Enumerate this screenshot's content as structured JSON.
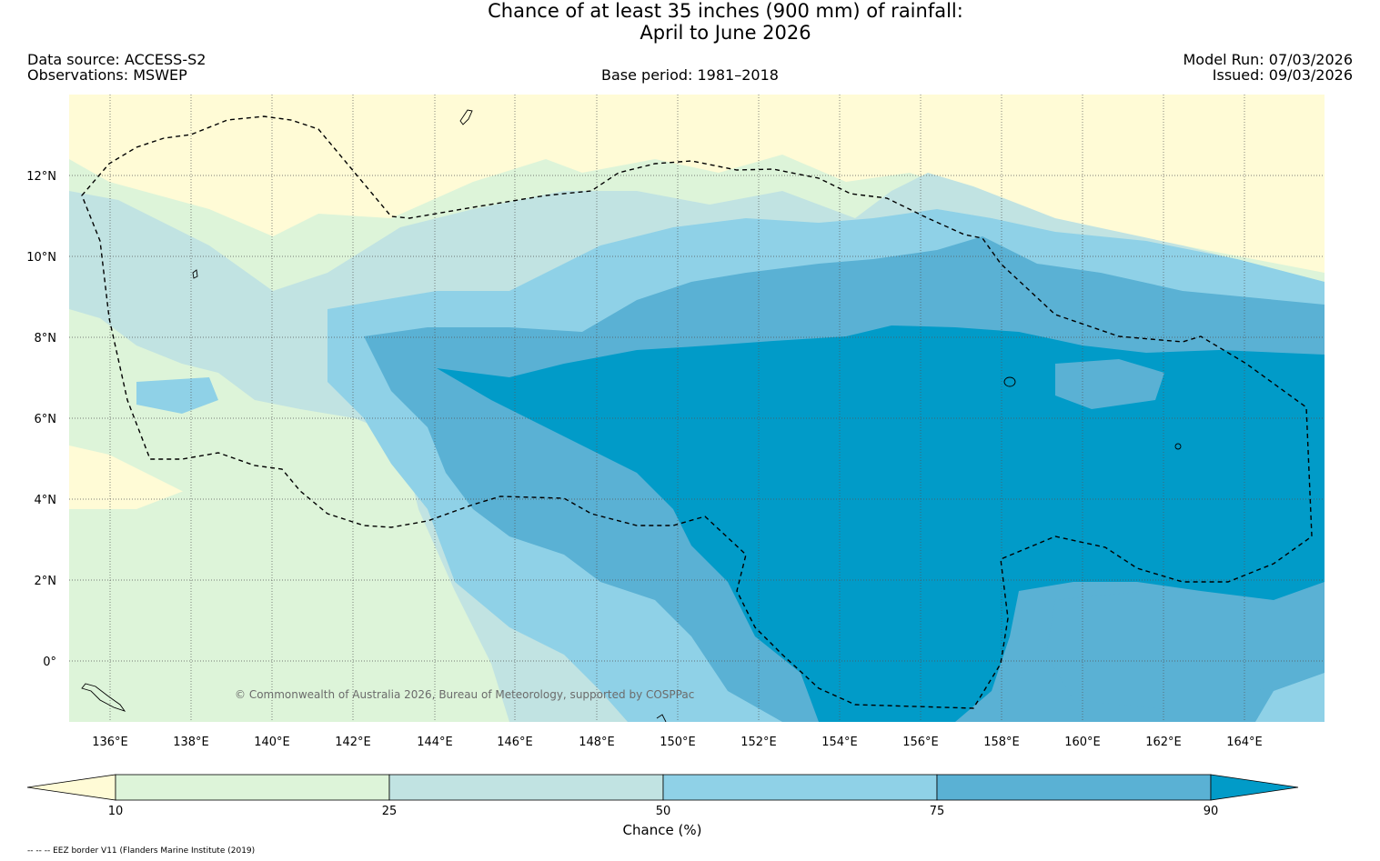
{
  "title": {
    "line1": "Chance of at least 35 inches (900  mm) of rainfall:",
    "line2": "April to June 2026"
  },
  "meta": {
    "data_source": "Data source: ACCESS-S2",
    "observations": "Observations: MSWEP",
    "base_period": "Base period: 1981–2018",
    "model_run": "Model Run: 07/03/2026",
    "issued": "Issued: 09/03/2026"
  },
  "map": {
    "lon_range": [
      135,
      166
    ],
    "lat_range": [
      -1.5,
      14
    ],
    "lon_ticks": [
      "136°E",
      "138°E",
      "140°E",
      "142°E",
      "144°E",
      "146°E",
      "148°E",
      "150°E",
      "152°E",
      "154°E",
      "156°E",
      "158°E",
      "160°E",
      "162°E",
      "164°E"
    ],
    "lat_ticks": [
      "12°N",
      "10°N",
      "8°N",
      "6°N",
      "4°N",
      "2°N",
      "0°"
    ],
    "copyright": "© Commonwealth of Australia 2026, Bureau of Meteorology, supported by COSPPac",
    "gridlines": "on"
  },
  "colorbar": {
    "bounds": [
      "10",
      "25",
      "50",
      "75",
      "90"
    ],
    "colors": [
      "#fffbd6",
      "#ddf4d9",
      "#c1e3e2",
      "#8fd1e7",
      "#5ab1d4",
      "#019bc8"
    ],
    "title": "Chance (%)"
  },
  "footnote": "-- -- -- EEZ border V11 (Flanders Marine Institute (2019)"
}
